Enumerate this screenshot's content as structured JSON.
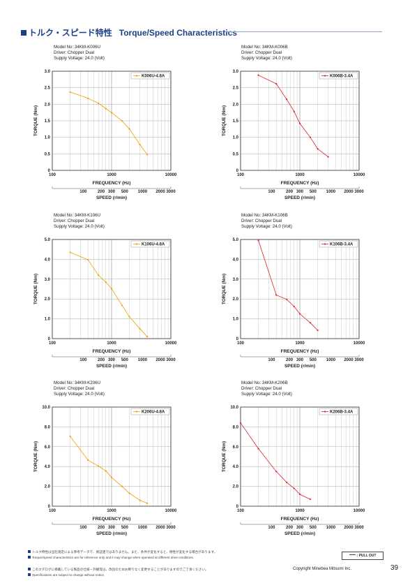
{
  "header": {
    "title_jp": "トルク・スピード特性",
    "title_en": "Torque/Speed Characteristics"
  },
  "common": {
    "xlabel": "FREQUENCY (Hz)",
    "x2label": "SPEED (r/min)",
    "ylabel": "TORQUE (Nm)",
    "x_ticks": [
      "100",
      "1000",
      "10000"
    ],
    "speed_ticks": [
      "100",
      "200",
      "300",
      "500",
      "1000",
      "2000",
      "3000"
    ]
  },
  "chart_data": [
    {
      "type": "line",
      "model": "Model No: 34KM-K006U",
      "driver": "Driver: Chopper Dual",
      "voltage": "Supply Voltage: 24.0 (Volt)",
      "color": "#f0a000",
      "legend": "K006U-4.8A",
      "xscale": "log",
      "xlim": [
        100,
        10000
      ],
      "ylim": [
        0,
        3
      ],
      "yticks": [
        "0",
        "0.5",
        "1.0",
        "1.5",
        "2.0",
        "2.5",
        "3.0"
      ],
      "series": [
        {
          "name": "K006U-4.8A",
          "x": [
            200,
            400,
            600,
            800,
            1000,
            1500,
            2000,
            3000,
            4000
          ],
          "y": [
            2.37,
            2.18,
            2.03,
            1.87,
            1.75,
            1.5,
            1.25,
            0.78,
            0.48
          ]
        }
      ]
    },
    {
      "type": "line",
      "model": "Model No: 34KM-K006B",
      "driver": "Driver: Chopper Dual",
      "voltage": "Supply Voltage: 24.0 (Volt)",
      "color": "#e0202a",
      "legend": "K006B-3.4A",
      "xscale": "log",
      "xlim": [
        100,
        10000
      ],
      "ylim": [
        0,
        3
      ],
      "yticks": [
        "0",
        "0.5",
        "1.0",
        "1.5",
        "2.0",
        "2.5",
        "3.0"
      ],
      "series": [
        {
          "name": "K006B-3.4A",
          "x": [
            200,
            400,
            600,
            800,
            1000,
            1500,
            2000,
            3000
          ],
          "y": [
            2.88,
            2.62,
            2.15,
            1.78,
            1.42,
            1.0,
            0.65,
            0.41
          ]
        }
      ]
    },
    {
      "type": "line",
      "model": "Model No: 34KM-K106U",
      "driver": "Driver: Chopper Dual",
      "voltage": "Supply Voltage: 24.0 (Volt)",
      "color": "#f0a000",
      "legend": "K106U-4.8A",
      "xscale": "log",
      "xlim": [
        100,
        10000
      ],
      "ylim": [
        0,
        5
      ],
      "yticks": [
        "0",
        "1.0",
        "2.0",
        "3.0",
        "4.0",
        "5.0"
      ],
      "series": [
        {
          "name": "K106U-4.8A",
          "x": [
            200,
            400,
            600,
            800,
            1000,
            1500,
            2000,
            3000,
            4000
          ],
          "y": [
            4.35,
            3.98,
            3.2,
            2.85,
            2.52,
            1.68,
            1.1,
            0.5,
            0.1
          ]
        }
      ]
    },
    {
      "type": "line",
      "model": "Model No: 34KM-K106B",
      "driver": "Driver: Chopper Dual",
      "voltage": "Supply Voltage: 24.0 (Volt)",
      "color": "#e0202a",
      "legend": "K106B-3.4A",
      "xscale": "log",
      "xlim": [
        100,
        10000
      ],
      "ylim": [
        0,
        5
      ],
      "yticks": [
        "0",
        "1.0",
        "2.0",
        "3.0",
        "4.0",
        "5.0"
      ],
      "series": [
        {
          "name": "K106B-3.4A",
          "x": [
            200,
            400,
            600,
            800,
            1000,
            1500,
            2000
          ],
          "y": [
            4.95,
            2.2,
            1.98,
            1.62,
            1.25,
            0.8,
            0.42
          ]
        }
      ]
    },
    {
      "type": "line",
      "model": "Model No: 34KM-K206U",
      "driver": "Driver: Chopper Dual",
      "voltage": "Supply Voltage: 24.0 (Volt)",
      "color": "#f0a000",
      "legend": "K206U-4.8A",
      "xscale": "log",
      "xlim": [
        100,
        10000
      ],
      "ylim": [
        0,
        10
      ],
      "yticks": [
        "0",
        "2.0",
        "4.0",
        "6.0",
        "8.0",
        "10.0"
      ],
      "series": [
        {
          "name": "K206U-4.8A",
          "x": [
            200,
            400,
            600,
            800,
            1000,
            1500,
            2000,
            3000,
            4000
          ],
          "y": [
            7.05,
            4.65,
            4.05,
            3.55,
            2.9,
            2.0,
            1.3,
            0.6,
            0.3
          ]
        }
      ]
    },
    {
      "type": "line",
      "model": "Model No: 34KM-K206B",
      "driver": "Driver: Chopper Dual",
      "voltage": "Supply Voltage: 24.0 (Volt)",
      "color": "#e0202a",
      "legend": "K206B-3.4A",
      "xscale": "log",
      "xlim": [
        100,
        10000
      ],
      "ylim": [
        0,
        10
      ],
      "yticks": [
        "0",
        "2.0",
        "4.0",
        "6.0",
        "8.0",
        "10.0"
      ],
      "series": [
        {
          "name": "K206B-3.4A",
          "x": [
            100,
            200,
            400,
            600,
            800,
            1000,
            1500
          ],
          "y": [
            8.4,
            5.8,
            3.5,
            2.4,
            1.8,
            1.2,
            0.7
          ]
        }
      ]
    }
  ],
  "footer": {
    "note1": "トルク特性は当社測定による参考データで、保証値ではありません。また、条件が変化すると、特性が変化する場合があります。",
    "note2": "Torque/Speed characteristics are for reference only and it may change when operated at different drive conditions.",
    "note3": "このカタログに掲載している製品の仕様・外観等は、改良のためお断りなく変更することがありますのでご了承ください。",
    "note4": "Specifications are subject to change without notice.",
    "pullout": "PULL OUT",
    "copyright": "Copyright Minebea Mitsumi Inc.",
    "page": "39"
  }
}
